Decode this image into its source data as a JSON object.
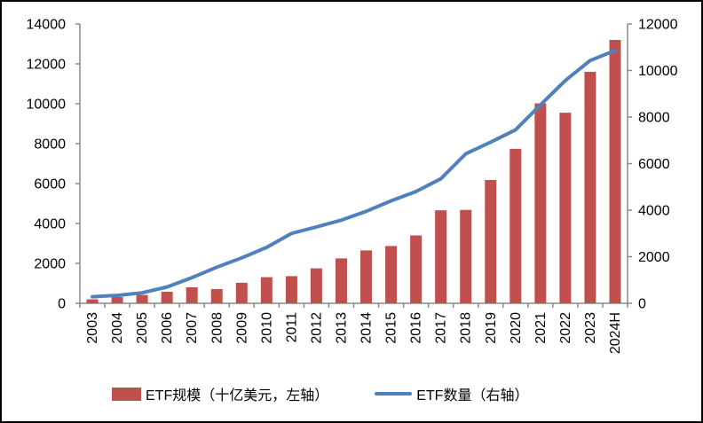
{
  "figure": {
    "background": "#ffffff",
    "border_color": "#000000"
  },
  "chart_data": {
    "type": "bar+line combo",
    "title": "",
    "categories": [
      "2003",
      "2004",
      "2005",
      "2006",
      "2007",
      "2008",
      "2009",
      "2010",
      "2011",
      "2012",
      "2013",
      "2014",
      "2015",
      "2016",
      "2017",
      "2018",
      "2019",
      "2020",
      "2021",
      "2022",
      "2023",
      "2024H"
    ],
    "series": [
      {
        "name": "ETF规模（十亿美元，左轴）",
        "type": "bar",
        "axis": "left",
        "color": "#C0504D",
        "values": [
          200,
          310,
          420,
          580,
          800,
          710,
          1030,
          1310,
          1360,
          1750,
          2250,
          2650,
          2870,
          3400,
          4660,
          4680,
          6180,
          7740,
          10020,
          9550,
          11600,
          13200
        ]
      },
      {
        "name": "ETF数量（右轴）",
        "type": "line",
        "axis": "right",
        "color": "#4F81BD",
        "values": [
          280,
          340,
          450,
          700,
          1100,
          1550,
          1950,
          2400,
          3000,
          3280,
          3570,
          3950,
          4400,
          4800,
          5350,
          6420,
          6920,
          7450,
          8520,
          9570,
          10430,
          10860
        ]
      }
    ],
    "left_axis": {
      "min": 0,
      "max": 14000,
      "tick_step": 2000,
      "tick_labels": [
        "0",
        "2000",
        "4000",
        "6000",
        "8000",
        "10000",
        "12000",
        "14000"
      ]
    },
    "right_axis": {
      "min": 0,
      "max": 12000,
      "tick_step": 2000,
      "tick_labels": [
        "0",
        "2000",
        "4000",
        "6000",
        "8000",
        "10000",
        "12000"
      ]
    },
    "grid": false,
    "legend_position": "bottom",
    "axis_color": "#8a8a8a",
    "text_color": "#000000"
  },
  "legend": {
    "items": [
      {
        "label": "ETF规模（十亿美元，左轴）",
        "swatch": "bar",
        "color": "#C0504D"
      },
      {
        "label": "ETF数量（右轴）",
        "swatch": "line",
        "color": "#4F81BD"
      }
    ]
  }
}
